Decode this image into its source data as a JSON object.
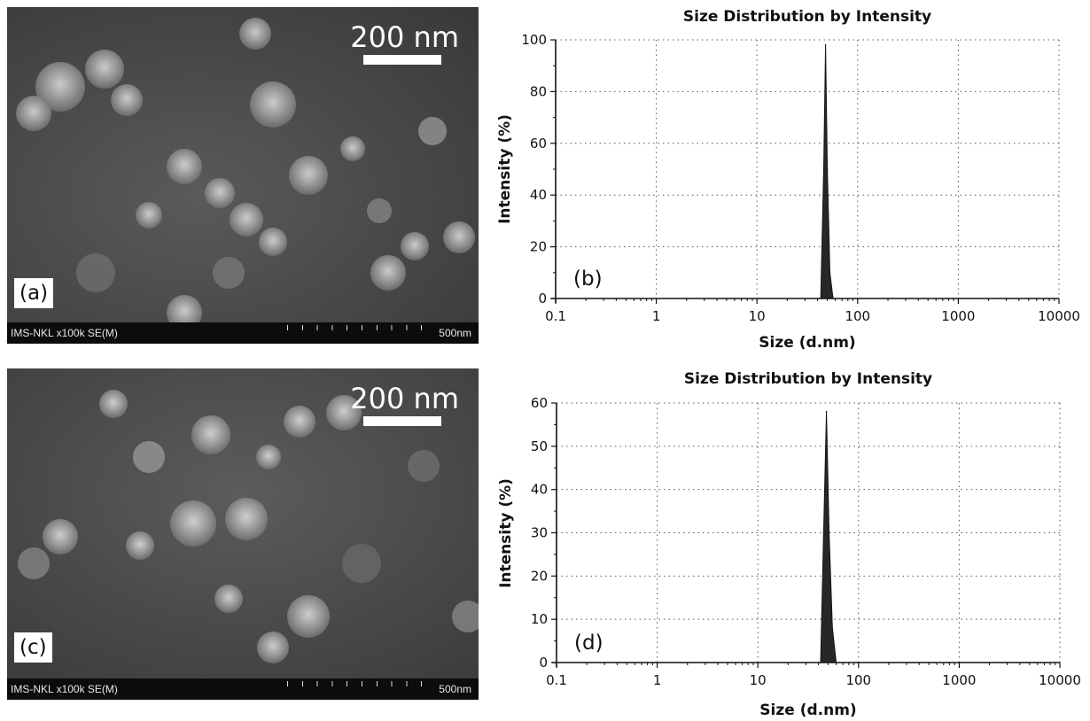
{
  "sem_images": [
    {
      "panel_label": "(a)",
      "scale_label": "200 nm",
      "info_text": "IMS-NKL x100k SE(M)",
      "bar_text": "500nm"
    },
    {
      "panel_label": "(c)",
      "scale_label": "200 nm",
      "info_text": "IMS-NKL x100k SE(M)",
      "bar_text": "500nm"
    }
  ],
  "chart_data": [
    {
      "type": "area",
      "panel_label": "(b)",
      "title": "Size Distribution by Intensity",
      "xlabel": "Size (d.nm)",
      "ylabel": "Intensity (%)",
      "xscale": "log",
      "xlim": [
        0.1,
        10000
      ],
      "ylim": [
        0,
        100
      ],
      "xticks": [
        "0.1",
        "1",
        "10",
        "100",
        "1000",
        "10000"
      ],
      "yticks": [
        "0",
        "20",
        "40",
        "60",
        "80",
        "100"
      ],
      "grid": true,
      "series": [
        {
          "x": [
            43,
            46,
            48,
            50,
            53,
            57
          ],
          "y": [
            0,
            50,
            98,
            50,
            10,
            0
          ]
        }
      ],
      "color": "#151515"
    },
    {
      "type": "area",
      "panel_label": "(d)",
      "title": "Size Distribution by Intensity",
      "xlabel": "Size (d.nm)",
      "ylabel": "Intensity (%)",
      "xscale": "log",
      "xlim": [
        0.1,
        10000
      ],
      "ylim": [
        0,
        60
      ],
      "xticks": [
        "0.1",
        "1",
        "10",
        "100",
        "1000",
        "10000"
      ],
      "yticks": [
        "0",
        "10",
        "20",
        "30",
        "40",
        "50",
        "60"
      ],
      "grid": true,
      "series": [
        {
          "x": [
            42,
            45,
            48,
            51,
            55,
            60
          ],
          "y": [
            0,
            30,
            58,
            30,
            8,
            0
          ]
        }
      ],
      "color": "#151515"
    }
  ]
}
